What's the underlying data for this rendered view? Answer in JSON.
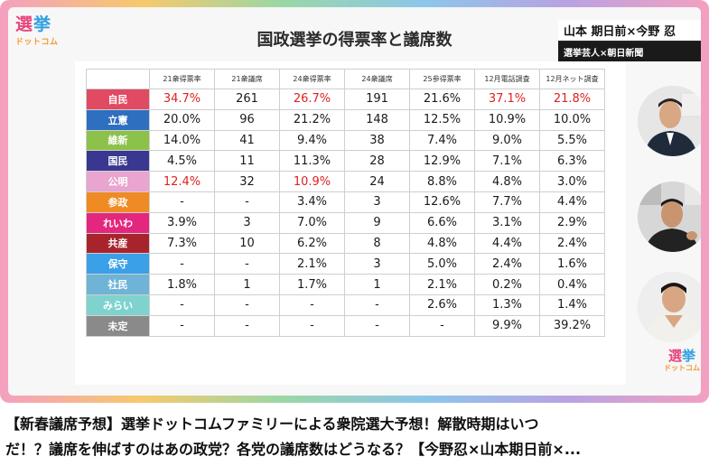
{
  "logo": {
    "main_a": "選",
    "main_b": "挙",
    "sub": "ドットコム"
  },
  "slide_title": "国政選挙の得票率と議席数",
  "badge": {
    "names": "山本 期日前×今野 忍",
    "role": "選挙芸人×朝日新聞"
  },
  "table": {
    "headers": [
      "",
      "21衆得票率",
      "21衆議席",
      "24衆得票率",
      "24衆議席",
      "25参得票率",
      "12月電話調査",
      "12月ネット調査"
    ],
    "rows": [
      {
        "party": "自民",
        "color": "#e04a62",
        "cells": [
          "34.7%",
          "261",
          "26.7%",
          "191",
          "21.6%",
          "37.1%",
          "21.8%"
        ],
        "red": [
          0,
          2,
          5,
          6
        ]
      },
      {
        "party": "立憲",
        "color": "#2f6fbf",
        "cells": [
          "20.0%",
          "96",
          "21.2%",
          "148",
          "12.5%",
          "10.9%",
          "10.0%"
        ],
        "red": []
      },
      {
        "party": "維新",
        "color": "#8cc14a",
        "cells": [
          "14.0%",
          "41",
          "9.4%",
          "38",
          "7.4%",
          "9.0%",
          "5.5%"
        ],
        "red": []
      },
      {
        "party": "国民",
        "color": "#39378f",
        "cells": [
          "4.5%",
          "11",
          "11.3%",
          "28",
          "12.9%",
          "7.1%",
          "6.3%"
        ],
        "red": []
      },
      {
        "party": "公明",
        "color": "#e9a4cf",
        "cells": [
          "12.4%",
          "32",
          "10.9%",
          "24",
          "8.8%",
          "4.8%",
          "3.0%"
        ],
        "red": [
          0,
          2
        ]
      },
      {
        "party": "参政",
        "color": "#f08a24",
        "cells": [
          "-",
          "-",
          "3.4%",
          "3",
          "12.6%",
          "7.7%",
          "4.4%"
        ],
        "red": []
      },
      {
        "party": "れいわ",
        "color": "#e4267e",
        "cells": [
          "3.9%",
          "3",
          "7.0%",
          "9",
          "6.6%",
          "3.1%",
          "2.9%"
        ],
        "red": []
      },
      {
        "party": "共産",
        "color": "#a8242c",
        "cells": [
          "7.3%",
          "10",
          "6.2%",
          "8",
          "4.8%",
          "4.4%",
          "2.4%"
        ],
        "red": []
      },
      {
        "party": "保守",
        "color": "#3aa0e8",
        "cells": [
          "-",
          "-",
          "2.1%",
          "3",
          "5.0%",
          "2.4%",
          "1.6%"
        ],
        "red": []
      },
      {
        "party": "社民",
        "color": "#6fb4d6",
        "cells": [
          "1.8%",
          "1",
          "1.7%",
          "1",
          "2.1%",
          "0.2%",
          "0.4%"
        ],
        "red": []
      },
      {
        "party": "みらい",
        "color": "#7fd3cf",
        "cells": [
          "-",
          "-",
          "-",
          "-",
          "2.6%",
          "1.3%",
          "1.4%"
        ],
        "red": []
      },
      {
        "party": "未定",
        "color": "#8a8a8a",
        "cells": [
          "-",
          "-",
          "-",
          "-",
          "-",
          "9.9%",
          "39.2%"
        ],
        "red": []
      }
    ]
  },
  "video_title": {
    "line1": "【新春議席予想】選挙ドットコムファミリーによる衆院選大予想！解散時期はいつ",
    "line2": "だ！？議席を伸ばすのはあの政党？各党の議席数はどうなる？【今野忍×山本期日前×..."
  }
}
